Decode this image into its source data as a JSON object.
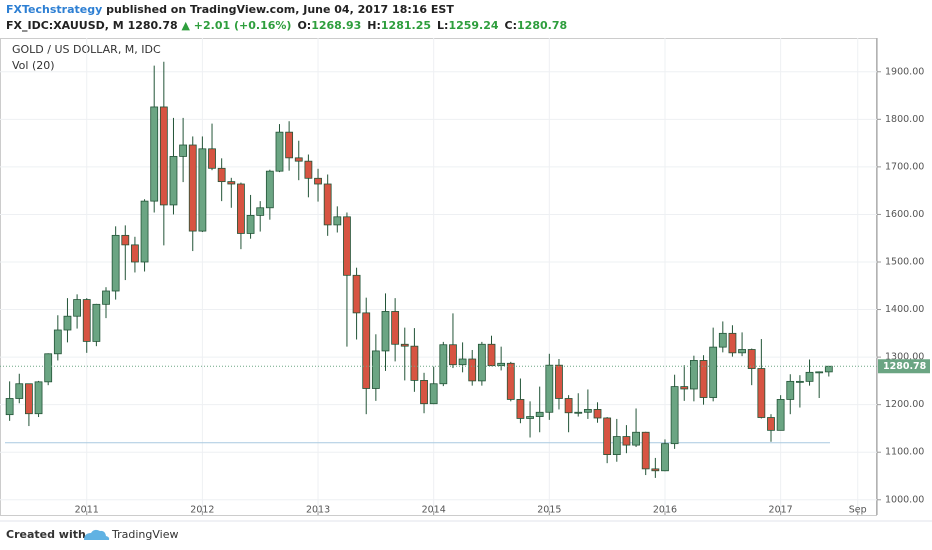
{
  "header": {
    "publisher": "FXTechstrategy",
    "published": "published on TradingView.com, June 04, 2017 18:16 EST",
    "symbol": "FX_IDC:XAUUSD, M",
    "last": "1280.78",
    "change": "▲ +2.01 (+0.16%)",
    "ohlc": [
      {
        "label": "O:",
        "value": "1268.93"
      },
      {
        "label": "H:",
        "value": "1281.25"
      },
      {
        "label": "L:",
        "value": "1259.24"
      },
      {
        "label": "C:",
        "value": "1280.78"
      }
    ]
  },
  "footer": {
    "created": "Created with",
    "brand": "TradingView"
  },
  "chart_data": {
    "type": "candlestick",
    "title": "GOLD / US DOLLAR, M, IDC",
    "subtitle": "Vol (20)",
    "up_color": "#6ba583",
    "down_color": "#d75442",
    "edge_color": "#225437",
    "grid": true,
    "ylim": [
      968,
      1971
    ],
    "yticks": [
      {
        "value": 1000,
        "label": "1000.00"
      },
      {
        "value": 1100,
        "label": "1100.00"
      },
      {
        "value": 1200,
        "label": "1200.00"
      },
      {
        "value": 1300,
        "label": "1300.00"
      },
      {
        "value": 1400,
        "label": "1400.00"
      },
      {
        "value": 1500,
        "label": "1500.00"
      },
      {
        "value": 1600,
        "label": "1600.00"
      },
      {
        "value": 1700,
        "label": "1700.00"
      },
      {
        "value": 1800,
        "label": "1800.00"
      },
      {
        "value": 1900,
        "label": "1900.00"
      }
    ],
    "xlim": [
      "2010-04",
      "2017-11"
    ],
    "xticks": [
      {
        "value": "2011-01",
        "label": "2011"
      },
      {
        "value": "2012-01",
        "label": "2012"
      },
      {
        "value": "2013-01",
        "label": "2013"
      },
      {
        "value": "2014-01",
        "label": "2014"
      },
      {
        "value": "2015-01",
        "label": "2015"
      },
      {
        "value": "2016-01",
        "label": "2016"
      },
      {
        "value": "2017-01",
        "label": "2017"
      },
      {
        "value": "2017-09",
        "label": "Sep"
      }
    ],
    "trend_line": {
      "value": 1120,
      "color": "#a9c9e0"
    },
    "x": [
      "2010-05",
      "2010-06",
      "2010-07",
      "2010-08",
      "2010-09",
      "2010-10",
      "2010-11",
      "2010-12",
      "2011-01",
      "2011-02",
      "2011-03",
      "2011-04",
      "2011-05",
      "2011-06",
      "2011-07",
      "2011-08",
      "2011-09",
      "2011-10",
      "2011-11",
      "2011-12",
      "2012-01",
      "2012-02",
      "2012-03",
      "2012-04",
      "2012-05",
      "2012-06",
      "2012-07",
      "2012-08",
      "2012-09",
      "2012-10",
      "2012-11",
      "2012-12",
      "2013-01",
      "2013-02",
      "2013-03",
      "2013-04",
      "2013-05",
      "2013-06",
      "2013-07",
      "2013-08",
      "2013-09",
      "2013-10",
      "2013-11",
      "2013-12",
      "2014-01",
      "2014-02",
      "2014-03",
      "2014-04",
      "2014-05",
      "2014-06",
      "2014-07",
      "2014-08",
      "2014-09",
      "2014-10",
      "2014-11",
      "2014-12",
      "2015-01",
      "2015-02",
      "2015-03",
      "2015-04",
      "2015-05",
      "2015-06",
      "2015-07",
      "2015-08",
      "2015-09",
      "2015-10",
      "2015-11",
      "2015-12",
      "2016-01",
      "2016-02",
      "2016-03",
      "2016-04",
      "2016-05",
      "2016-06",
      "2016-07",
      "2016-08",
      "2016-09",
      "2016-10",
      "2016-11",
      "2016-12",
      "2017-01",
      "2017-02",
      "2017-03",
      "2017-04",
      "2017-05",
      "2017-06"
    ],
    "open": [
      1179,
      1213,
      1244,
      1181,
      1248,
      1307,
      1357,
      1386,
      1421,
      1333,
      1411,
      1439,
      1556,
      1536,
      1500,
      1628,
      1826,
      1620,
      1722,
      1746,
      1565,
      1738,
      1697,
      1669,
      1664,
      1560,
      1598,
      1614,
      1691,
      1773,
      1719,
      1712,
      1676,
      1664,
      1578,
      1595,
      1472,
      1393,
      1234,
      1313,
      1396,
      1327,
      1323,
      1251,
      1202,
      1244,
      1326,
      1284,
      1296,
      1250,
      1327,
      1282,
      1287,
      1211,
      1171,
      1175,
      1184,
      1283,
      1213,
      1183,
      1184,
      1190,
      1172,
      1095,
      1133,
      1115,
      1142,
      1065,
      1061,
      1118,
      1238,
      1233,
      1293,
      1215,
      1321,
      1350,
      1309,
      1316,
      1276,
      1173,
      1146,
      1211,
      1249,
      1249,
      1268,
      1268.93
    ],
    "high": [
      1249,
      1265,
      1244,
      1250,
      1308,
      1388,
      1424,
      1432,
      1424,
      1412,
      1447,
      1575,
      1577,
      1553,
      1632,
      1913,
      1921,
      1803,
      1803,
      1764,
      1764,
      1791,
      1718,
      1677,
      1667,
      1641,
      1628,
      1694,
      1790,
      1796,
      1755,
      1726,
      1696,
      1684,
      1617,
      1604,
      1488,
      1425,
      1348,
      1434,
      1424,
      1362,
      1361,
      1267,
      1280,
      1332,
      1392,
      1331,
      1315,
      1332,
      1345,
      1322,
      1290,
      1255,
      1207,
      1238,
      1307,
      1296,
      1220,
      1224,
      1232,
      1205,
      1174,
      1170,
      1157,
      1192,
      1143,
      1088,
      1127,
      1263,
      1283,
      1303,
      1304,
      1362,
      1375,
      1367,
      1352,
      1318,
      1338,
      1180,
      1220,
      1264,
      1262,
      1295,
      1270,
      1281.25
    ],
    "low": [
      1166,
      1203,
      1155,
      1174,
      1241,
      1293,
      1331,
      1360,
      1309,
      1323,
      1382,
      1421,
      1462,
      1478,
      1480,
      1604,
      1535,
      1600,
      1668,
      1523,
      1563,
      1693,
      1628,
      1614,
      1527,
      1549,
      1564,
      1589,
      1689,
      1692,
      1672,
      1636,
      1627,
      1555,
      1562,
      1322,
      1337,
      1180,
      1208,
      1271,
      1291,
      1251,
      1227,
      1182,
      1201,
      1239,
      1277,
      1268,
      1240,
      1240,
      1281,
      1272,
      1207,
      1161,
      1131,
      1142,
      1168,
      1190,
      1142,
      1175,
      1170,
      1162,
      1077,
      1080,
      1098,
      1111,
      1052,
      1046,
      1060,
      1107,
      1208,
      1207,
      1200,
      1207,
      1310,
      1301,
      1302,
      1241,
      1171,
      1122,
      1146,
      1180,
      1194,
      1240,
      1214,
      1259.24
    ],
    "close": [
      1213,
      1244,
      1181,
      1248,
      1307,
      1357,
      1386,
      1421,
      1333,
      1411,
      1439,
      1556,
      1536,
      1500,
      1628,
      1826,
      1620,
      1722,
      1746,
      1565,
      1738,
      1697,
      1669,
      1664,
      1560,
      1598,
      1614,
      1691,
      1773,
      1719,
      1712,
      1676,
      1664,
      1578,
      1595,
      1472,
      1393,
      1234,
      1313,
      1396,
      1327,
      1323,
      1251,
      1202,
      1244,
      1326,
      1284,
      1296,
      1250,
      1327,
      1282,
      1287,
      1211,
      1171,
      1175,
      1184,
      1283,
      1213,
      1183,
      1184,
      1190,
      1172,
      1095,
      1133,
      1115,
      1142,
      1065,
      1061,
      1118,
      1238,
      1233,
      1293,
      1215,
      1321,
      1350,
      1309,
      1316,
      1276,
      1173,
      1146,
      1211,
      1249,
      1249,
      1268,
      1269,
      1280.78
    ]
  }
}
